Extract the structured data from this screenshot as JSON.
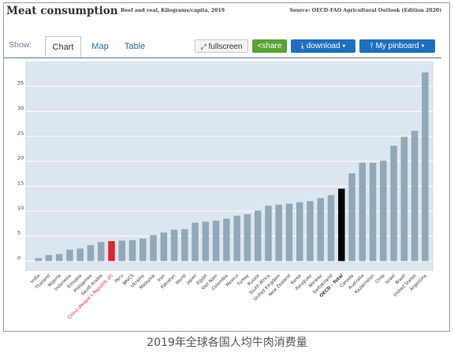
{
  "header": {
    "title": "Meat consumption",
    "subtitle": "Beef and veal, Kilograms/capita, 2019",
    "source": "Source: OECD-FAO Agricultural Outlook (Edition 2020)"
  },
  "toolbar": {
    "show_label": "Show:",
    "tabs": [
      "Chart",
      "Map",
      "Table"
    ],
    "active_tab": "Chart",
    "fullscreen_label": "fullscreen",
    "share_label": "share",
    "download_label": "download",
    "pinboard_label": "My pinboard"
  },
  "caption": "2019年全球各国人均牛肉消费量",
  "colors": {
    "bar": "#91a8b8",
    "highlight_red": "#e0262a",
    "highlight_black": "#000000",
    "plot_bg": "#dbe6ee",
    "grid": "#ffffff"
  },
  "chart_data": {
    "type": "bar",
    "title": "Meat consumption",
    "subtitle": "Beef and veal, Kilograms/capita, 2019",
    "categories": [
      "India",
      "Thailand",
      "Nigeria",
      "Indonesia",
      "Ethiopia",
      "Philippines",
      "Saudi Arabia",
      "China (People's Republic of)",
      "Peru",
      "BRICS",
      "Ukraine",
      "Malaysia",
      "Iran",
      "Pakistan",
      "World",
      "Japan",
      "Egypt",
      "Viet Nam",
      "Colombia",
      "Mexico",
      "Turkey",
      "Russia",
      "South Africa",
      "United Kingdom",
      "New Zealand",
      "Korea",
      "Paraguay",
      "Norway",
      "Switzerland",
      "OECD - Total",
      "Canada",
      "Australia",
      "Kazakhstan",
      "Chile",
      "Israel",
      "Brazil",
      "United States",
      "Argentina"
    ],
    "values": [
      0.6,
      1.2,
      1.4,
      2.3,
      2.5,
      3.2,
      3.8,
      4.0,
      4.1,
      4.2,
      4.5,
      5.2,
      5.7,
      6.3,
      6.4,
      7.7,
      7.9,
      8.1,
      8.5,
      9.1,
      9.4,
      10.1,
      11.1,
      11.3,
      11.5,
      11.8,
      12.0,
      12.6,
      13.2,
      14.5,
      17.6,
      19.7,
      19.7,
      20.1,
      23.1,
      24.9,
      26.1,
      37.8
    ],
    "highlight": {
      "China (People's Republic of)": "red",
      "OECD - Total": "black"
    },
    "y_ticks": [
      0,
      5,
      10,
      15,
      20,
      25,
      30,
      35
    ],
    "ylim": [
      -2,
      40
    ],
    "grid": true
  }
}
